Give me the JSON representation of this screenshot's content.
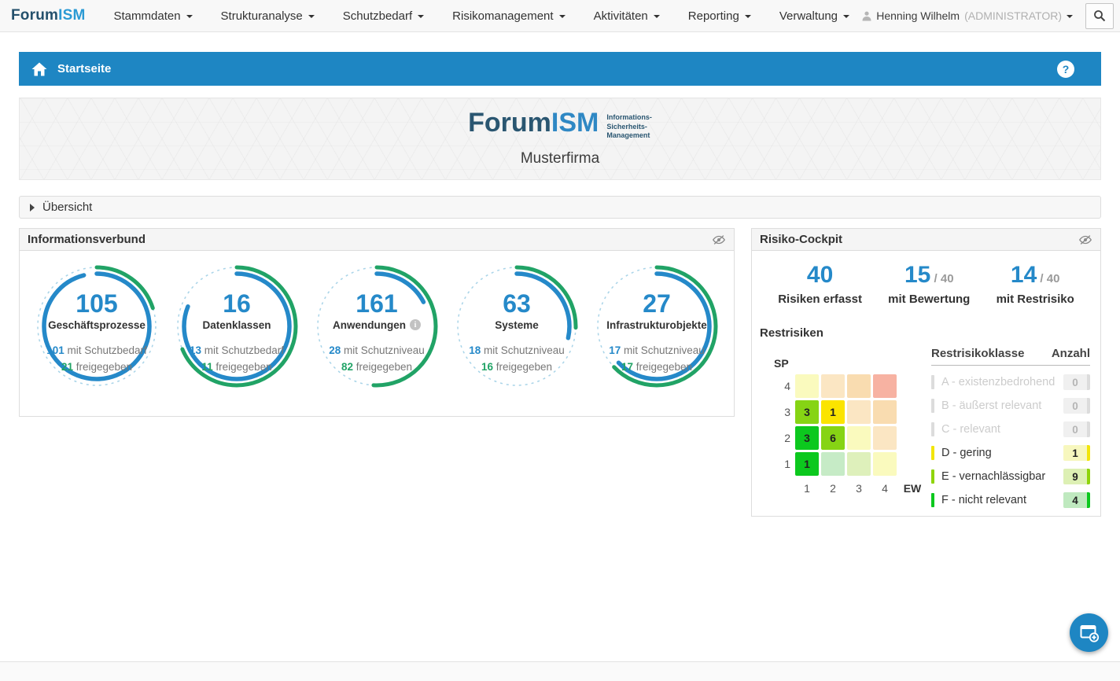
{
  "colors": {
    "accent_blue": "#2589c9",
    "bar_blue": "#1e86c3",
    "green": "#21a366",
    "dashed_ring": "#a9d4e8"
  },
  "nav": {
    "logo": {
      "part1": "Forum",
      "part2": "ISM"
    },
    "items": [
      "Stammdaten",
      "Strukturanalyse",
      "Schutzbedarf",
      "Risikomanagement",
      "Aktivitäten",
      "Reporting",
      "Verwaltung"
    ],
    "user": {
      "name": "Henning Wilhelm",
      "role": "(ADMINISTRATOR)"
    }
  },
  "breadcrumb": {
    "title": "Startseite",
    "help": "?"
  },
  "banner": {
    "brand1": "Forum",
    "brand2": "ISM",
    "tagline": [
      "Informations-",
      "Sicherheits-",
      "Management"
    ],
    "company": "Musterfirma"
  },
  "uebersicht": {
    "label": "Übersicht"
  },
  "informationsverbund": {
    "title": "Informationsverbund",
    "gauges": [
      {
        "total": "105",
        "name": "Geschäftsprozesse",
        "line1_value": "101",
        "line1_label": "mit Schutzbedarf",
        "line2_value": "21",
        "line2_label": "freigegeben",
        "info_icon": false
      },
      {
        "total": "16",
        "name": "Datenklassen",
        "line1_value": "13",
        "line1_label": "mit Schutzbedarf",
        "line2_value": "11",
        "line2_label": "freigegeben",
        "info_icon": false
      },
      {
        "total": "161",
        "name": "Anwendungen",
        "line1_value": "28",
        "line1_label": "mit Schutzniveau",
        "line2_value": "82",
        "line2_label": "freigegeben",
        "info_icon": true
      },
      {
        "total": "63",
        "name": "Systeme",
        "line1_value": "18",
        "line1_label": "mit Schutzniveau",
        "line2_value": "16",
        "line2_label": "freigegeben",
        "info_icon": false
      },
      {
        "total": "27",
        "name": "Infrastrukturobjekte",
        "line1_value": "17",
        "line1_label": "mit Schutzniveau",
        "line2_value": "17",
        "line2_label": "freigegeben",
        "info_icon": false
      }
    ]
  },
  "risiko_cockpit": {
    "title": "Risiko-Cockpit",
    "stats": [
      {
        "value": "40",
        "suffix": "",
        "label": "Risiken erfasst"
      },
      {
        "value": "15",
        "suffix": "/ 40",
        "label": "mit Bewertung"
      },
      {
        "value": "14",
        "suffix": "/ 40",
        "label": "mit Restrisiko"
      }
    ],
    "restrisiken": {
      "title": "Restrisiken",
      "sp_label": "SP",
      "ew_label": "EW",
      "row_labels": [
        "4",
        "3",
        "2",
        "1"
      ],
      "col_labels": [
        "1",
        "2",
        "3",
        "4"
      ],
      "cells": [
        [
          {
            "value": "",
            "color": "#fafabe"
          },
          {
            "value": "",
            "color": "#fbe6c3"
          },
          {
            "value": "",
            "color": "#f9dcb0"
          },
          {
            "value": "",
            "color": "#f7b2a2"
          }
        ],
        [
          {
            "value": "3",
            "color": "#86d414"
          },
          {
            "value": "1",
            "color": "#fbe400"
          },
          {
            "value": "",
            "color": "#fbe6c3"
          },
          {
            "value": "",
            "color": "#f9dcb0"
          }
        ],
        [
          {
            "value": "3",
            "color": "#0cc81e"
          },
          {
            "value": "6",
            "color": "#86d414"
          },
          {
            "value": "",
            "color": "#fafabe"
          },
          {
            "value": "",
            "color": "#fbe6c3"
          }
        ],
        [
          {
            "value": "1",
            "color": "#0cc81e"
          },
          {
            "value": "",
            "color": "#c6ebc6"
          },
          {
            "value": "",
            "color": "#def0bb"
          },
          {
            "value": "",
            "color": "#fafabe"
          }
        ]
      ],
      "table": {
        "headers": [
          "Restrisikoklasse",
          "Anzahl"
        ],
        "rows": [
          {
            "label": "A - existenzbedrohend",
            "count": "0",
            "disabled": true,
            "color": "#dcdcdc",
            "badge_bg": "#f0f0f0"
          },
          {
            "label": "B - äußerst relevant",
            "count": "0",
            "disabled": true,
            "color": "#dcdcdc",
            "badge_bg": "#f0f0f0"
          },
          {
            "label": "C - relevant",
            "count": "0",
            "disabled": true,
            "color": "#dcdcdc",
            "badge_bg": "#f0f0f0"
          },
          {
            "label": "D - gering",
            "count": "1",
            "disabled": false,
            "color": "#f2e50a",
            "badge_bg": "#f7f7be"
          },
          {
            "label": "E - vernachlässigbar",
            "count": "9",
            "disabled": false,
            "color": "#8fd40a",
            "badge_bg": "#ddf0b4"
          },
          {
            "label": "F - nicht relevant",
            "count": "4",
            "disabled": false,
            "color": "#0cc81e",
            "badge_bg": "#bfe9bf"
          }
        ]
      }
    }
  }
}
